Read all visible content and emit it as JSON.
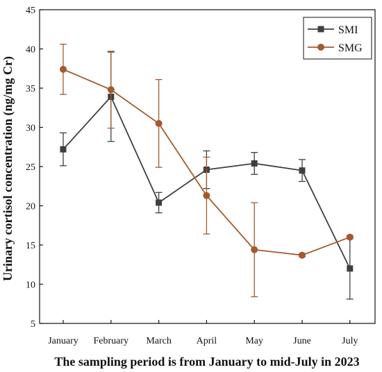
{
  "chart_data": {
    "type": "line",
    "title": "",
    "xlabel": "The sampling period is from January to mid-July in 2023",
    "ylabel": "Urinary cortisol concentration (ng/mg Cr)",
    "categories": [
      "January",
      "February",
      "March",
      "April",
      "May",
      "June",
      "July"
    ],
    "ylim": [
      5,
      45
    ],
    "yticks": [
      5,
      10,
      15,
      20,
      25,
      30,
      35,
      40,
      45
    ],
    "grid": false,
    "legend_position": "top-right",
    "series": [
      {
        "name": "SMI",
        "marker": "square",
        "color": "#3f3f3f",
        "values": [
          27.2,
          33.9,
          20.4,
          24.6,
          25.4,
          24.5,
          12.0
        ],
        "error": [
          2.1,
          5.7,
          1.3,
          2.4,
          1.4,
          1.4,
          3.9
        ]
      },
      {
        "name": "SMG",
        "marker": "circle",
        "color": "#a45a2e",
        "values": [
          37.4,
          34.8,
          30.5,
          21.3,
          14.4,
          13.7,
          16.0
        ],
        "error": [
          3.2,
          4.9,
          5.6,
          4.9,
          6.0,
          0.2,
          0.2
        ]
      }
    ]
  }
}
